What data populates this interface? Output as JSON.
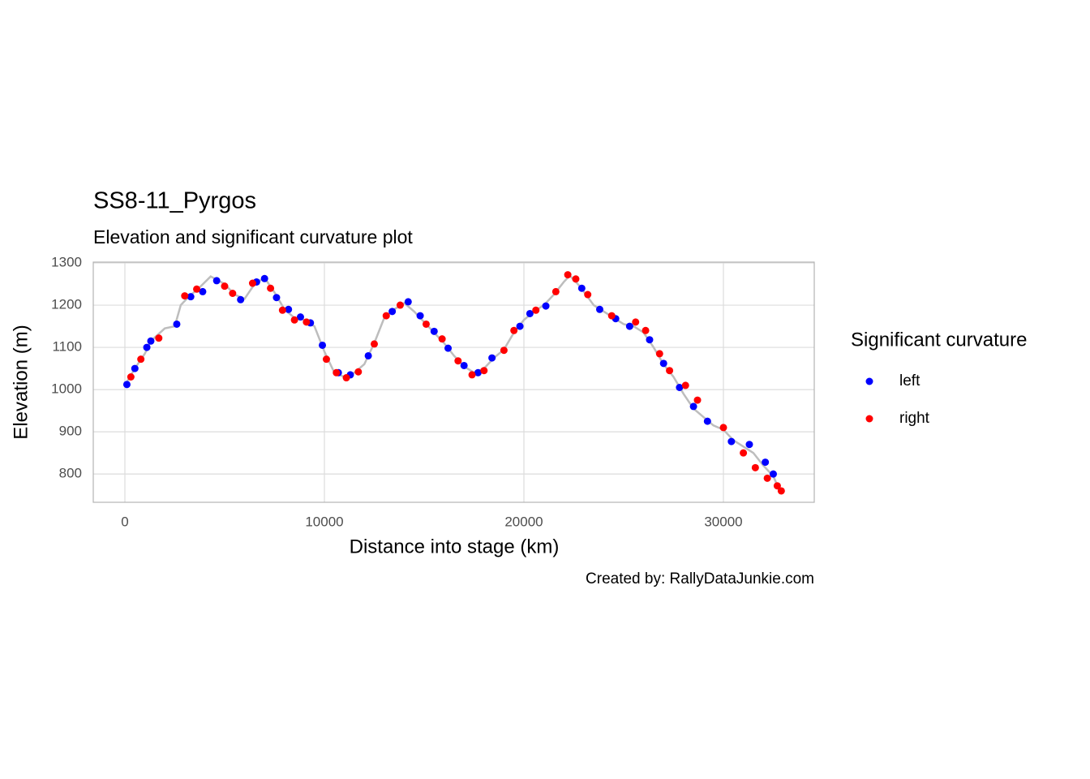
{
  "chart_data": {
    "type": "scatter",
    "title": "SS8-11_Pyrgos",
    "subtitle": "Elevation and significant curvature plot",
    "caption": "Created by: RallyDataJunkie.com",
    "x_label": "Distance into stage (km)",
    "y_label": "Elevation (m)",
    "legend_title": "Significant curvature",
    "legend_position": "right",
    "grid": true,
    "xlim": [
      -1585,
      34553
    ],
    "ylim": [
      733,
      1302
    ],
    "xticks": [
      0,
      10000,
      20000,
      30000
    ],
    "yticks": [
      800,
      900,
      1000,
      1100,
      1200,
      1300
    ],
    "series": [
      {
        "mode": "line",
        "color": "#bdbdbd",
        "x": [
          0,
          500,
          1000,
          1300,
          2000,
          2500,
          2800,
          3200,
          3700,
          4300,
          5000,
          5500,
          6000,
          6500,
          7000,
          7500,
          8000,
          8500,
          9000,
          9500,
          10000,
          10500,
          11000,
          11500,
          12000,
          12500,
          13000,
          13500,
          14000,
          14500,
          15000,
          15500,
          16000,
          16500,
          17000,
          17500,
          18000,
          18500,
          19000,
          19500,
          20000,
          20500,
          21000,
          21500,
          22000,
          22300,
          22800,
          23500,
          24000,
          24500,
          25000,
          25500,
          26000,
          26500,
          27000,
          27500,
          28000,
          28500,
          29000,
          29500,
          30000,
          30500,
          31000,
          31500,
          32000,
          32500,
          32800
        ],
        "values": [
          1010,
          1050,
          1085,
          1115,
          1145,
          1150,
          1200,
          1220,
          1240,
          1268,
          1250,
          1225,
          1215,
          1250,
          1265,
          1230,
          1190,
          1170,
          1165,
          1150,
          1090,
          1040,
          1030,
          1040,
          1060,
          1110,
          1170,
          1190,
          1205,
          1185,
          1160,
          1135,
          1110,
          1080,
          1055,
          1040,
          1050,
          1075,
          1095,
          1135,
          1165,
          1185,
          1200,
          1225,
          1255,
          1270,
          1245,
          1200,
          1185,
          1170,
          1155,
          1150,
          1135,
          1100,
          1060,
          1030,
          990,
          955,
          935,
          915,
          905,
          880,
          865,
          850,
          820,
          795,
          762
        ]
      },
      {
        "mode": "point",
        "name": "left",
        "color": "#0000ff",
        "x": [
          100,
          500,
          1100,
          1300,
          2600,
          3300,
          3900,
          4600,
          5800,
          6600,
          7000,
          7600,
          8200,
          8800,
          9300,
          9900,
          10700,
          11300,
          12200,
          13400,
          14200,
          14800,
          15500,
          16200,
          17000,
          17700,
          18400,
          19800,
          20300,
          21100,
          22900,
          23800,
          24600,
          25300,
          26300,
          27000,
          27800,
          28500,
          29200,
          30400,
          31300,
          32100,
          32500
        ],
        "values": [
          1012,
          1050,
          1100,
          1115,
          1155,
          1220,
          1232,
          1258,
          1213,
          1255,
          1263,
          1218,
          1190,
          1172,
          1158,
          1105,
          1040,
          1035,
          1080,
          1185,
          1208,
          1175,
          1138,
          1098,
          1057,
          1040,
          1075,
          1150,
          1180,
          1198,
          1240,
          1190,
          1168,
          1150,
          1118,
          1062,
          1005,
          960,
          925,
          877,
          870,
          828,
          800
        ]
      },
      {
        "mode": "point",
        "name": "right",
        "color": "#ff0000",
        "x": [
          300,
          800,
          1700,
          3000,
          3600,
          5000,
          5400,
          6400,
          7300,
          7900,
          8500,
          9100,
          10100,
          10600,
          11100,
          11700,
          12500,
          13100,
          13800,
          15100,
          15900,
          16700,
          17400,
          18000,
          19000,
          19500,
          20600,
          21600,
          22200,
          22600,
          23200,
          24400,
          25600,
          26100,
          26800,
          27300,
          28100,
          28700,
          30000,
          31000,
          31600,
          32200,
          32700,
          32900
        ],
        "values": [
          1030,
          1072,
          1122,
          1222,
          1238,
          1245,
          1228,
          1252,
          1240,
          1188,
          1165,
          1160,
          1072,
          1040,
          1028,
          1042,
          1108,
          1175,
          1200,
          1155,
          1120,
          1068,
          1035,
          1045,
          1093,
          1140,
          1188,
          1232,
          1272,
          1262,
          1225,
          1175,
          1160,
          1140,
          1085,
          1045,
          1010,
          975,
          910,
          850,
          815,
          790,
          772,
          760
        ]
      }
    ]
  }
}
